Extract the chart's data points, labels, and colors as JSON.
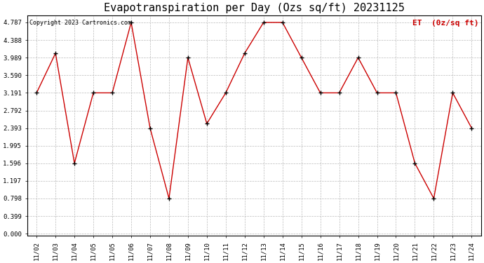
{
  "title": "Evapotranspiration per Day (Ozs sq/ft) 20231125",
  "copyright": "Copyright 2023 Cartronics.com",
  "legend_label": "ET  (0z/sq ft)",
  "x_labels": [
    "11/02",
    "11/03",
    "11/04",
    "11/05",
    "11/05",
    "11/06",
    "11/07",
    "11/08",
    "11/09",
    "11/10",
    "11/11",
    "11/12",
    "11/13",
    "11/14",
    "11/15",
    "11/16",
    "11/17",
    "11/18",
    "11/19",
    "11/20",
    "11/21",
    "11/22",
    "11/23",
    "11/24"
  ],
  "et_values": [
    3.191,
    4.089,
    1.596,
    3.191,
    3.191,
    4.787,
    2.393,
    0.798,
    3.989,
    2.493,
    3.191,
    4.089,
    4.787,
    4.787,
    3.989,
    3.191,
    3.191,
    3.989,
    3.191,
    3.191,
    1.596,
    0.798,
    3.191,
    2.393
  ],
  "y_ticks": [
    0.0,
    0.399,
    0.798,
    1.197,
    1.596,
    1.995,
    2.393,
    2.792,
    3.191,
    3.59,
    3.989,
    4.388,
    4.787
  ],
  "ylim_min": -0.05,
  "ylim_max": 4.95,
  "line_color": "#cc0000",
  "marker_color": "#000000",
  "grid_color": "#bbbbbb",
  "background_color": "#ffffff",
  "title_fontsize": 11,
  "tick_fontsize": 6.5,
  "copyright_fontsize": 6,
  "legend_fontsize": 8
}
